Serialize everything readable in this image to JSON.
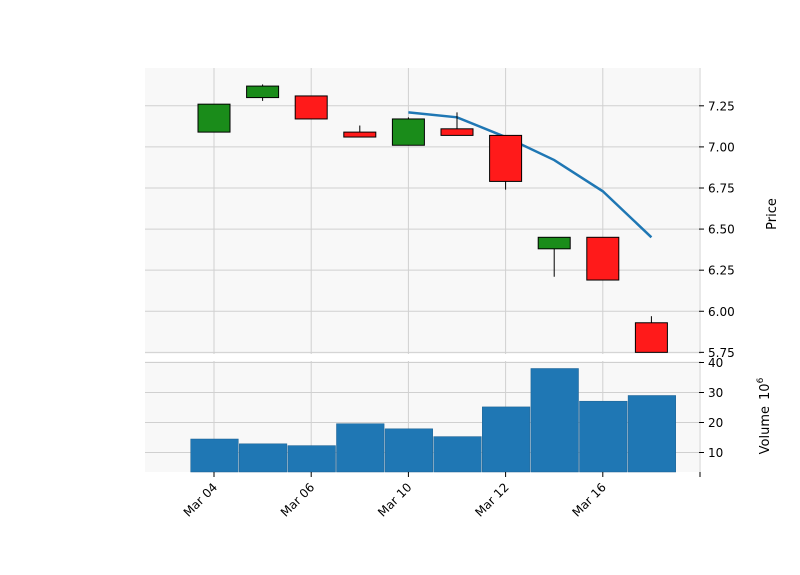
{
  "chart_data": {
    "type": "candlestick",
    "x_tick_labels": [
      "Mar 04",
      "Mar 06",
      "Mar 10",
      "Mar 12",
      "Mar 16"
    ],
    "price_panel": {
      "ylabel": "Price",
      "ylim": [
        5.74,
        7.48
      ],
      "yticks": [
        "5.75",
        "6.00",
        "6.25",
        "6.50",
        "6.75",
        "7.00",
        "7.25"
      ],
      "up_color": "#1a8c1a",
      "down_color": "#ff1a1a",
      "candles": [
        {
          "open": 7.09,
          "high": 7.26,
          "low": 7.09,
          "close": 7.26
        },
        {
          "open": 7.3,
          "high": 7.38,
          "low": 7.28,
          "close": 7.37
        },
        {
          "open": 7.31,
          "high": 7.31,
          "low": 7.17,
          "close": 7.17
        },
        {
          "open": 7.09,
          "high": 7.13,
          "low": 7.06,
          "close": 7.06
        },
        {
          "open": 7.01,
          "high": 7.18,
          "low": 7.01,
          "close": 7.17
        },
        {
          "open": 7.11,
          "high": 7.21,
          "low": 7.07,
          "close": 7.07
        },
        {
          "open": 7.07,
          "high": 7.07,
          "low": 6.74,
          "close": 6.79
        },
        {
          "open": 6.38,
          "high": 6.45,
          "low": 6.21,
          "close": 6.45
        },
        {
          "open": 6.45,
          "high": 6.45,
          "low": 6.19,
          "close": 6.19
        },
        {
          "open": 5.93,
          "high": 5.97,
          "low": 5.75,
          "close": 5.75
        }
      ],
      "moving_average": {
        "color": "#1f77b4",
        "points": [
          {
            "index": 4,
            "value": 7.21
          },
          {
            "index": 5,
            "value": 7.18
          },
          {
            "index": 6,
            "value": 7.06
          },
          {
            "index": 7,
            "value": 6.92
          },
          {
            "index": 8,
            "value": 6.73
          },
          {
            "index": 9,
            "value": 6.45
          }
        ]
      }
    },
    "volume_panel": {
      "ylabel": "Volume",
      "ylabel_exponent": "10",
      "ylabel_power": "6",
      "ylim": [
        3.5,
        40.5
      ],
      "yticks": [
        "10",
        "20",
        "30",
        "40"
      ],
      "color": "#1f77b4",
      "values": [
        14.5,
        12.9,
        12.3,
        19.6,
        17.9,
        15.3,
        25.2,
        38.0,
        27.1,
        29.0
      ]
    }
  }
}
